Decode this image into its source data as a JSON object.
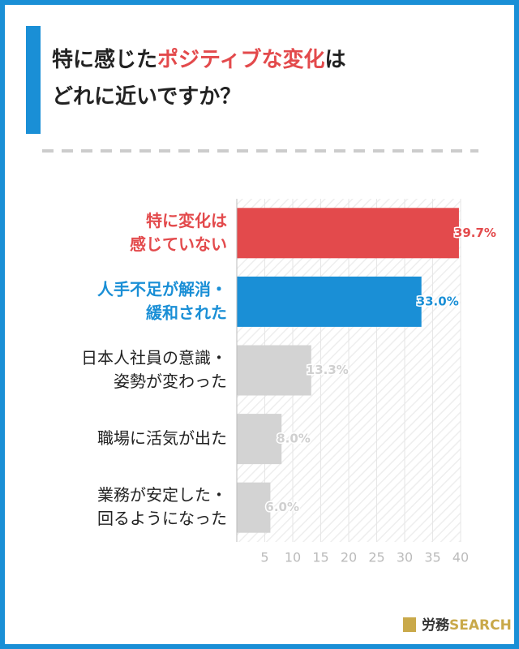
{
  "title": {
    "parts": [
      "特に感じた",
      "ポジティブな変化",
      "は",
      "どれに近いですか？"
    ],
    "highlight_color": "#e34a4c"
  },
  "chart_data": {
    "type": "hbar",
    "categories": [
      [
        "特に変化は",
        "感じていない"
      ],
      [
        "人手不足が解消・",
        "緩和された"
      ],
      [
        "日本人社員の意識・",
        "姿勢が変わった"
      ],
      [
        "職場に活気が出た"
      ],
      [
        "業務が安定した・",
        "回るようになった"
      ]
    ],
    "values": [
      39.7,
      33.0,
      13.3,
      8.0,
      6.0
    ],
    "value_labels": [
      "39.7%",
      "33.0%",
      "13.3%",
      "8.0%",
      "6.0%"
    ],
    "colors": [
      "#e34a4c",
      "#1a8fd6",
      "#d3d3d3",
      "#d3d3d3",
      "#d3d3d3"
    ],
    "label_colors": [
      "#e34a4c",
      "#1a8fd6",
      "#222222",
      "#222222",
      "#222222"
    ],
    "value_label_colors": [
      "#e34a4c",
      "#1a8fd6",
      "#d0d0d0",
      "#d0d0d0",
      "#d0d0d0"
    ],
    "xlim": [
      0,
      40
    ],
    "xticks": [
      5,
      10,
      15,
      20,
      25,
      30,
      35,
      40
    ],
    "grid": true
  },
  "footer": {
    "logo_ja": "労務",
    "logo_en": "SEARCH"
  }
}
